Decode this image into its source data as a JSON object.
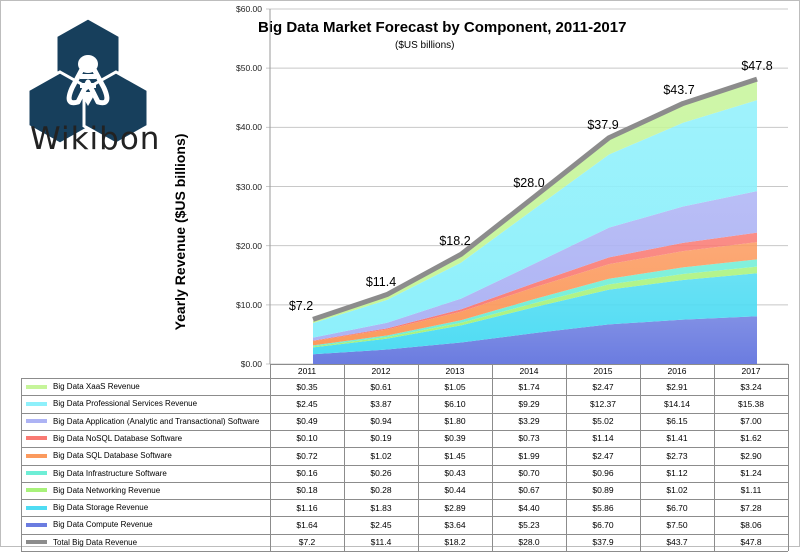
{
  "brand": {
    "name": "Wikibon",
    "logo_icon": "bee-hexagon-logo-icon"
  },
  "chart_data": {
    "type": "area",
    "stacked": true,
    "title": "Big Data Market Forecast by Component, 2011-2017",
    "subtitle": "($US billions)",
    "xlabel": "",
    "ylabel": "Yearly Revenue ($US billions)",
    "ylim": [
      0,
      60
    ],
    "yticks": [
      "$0.00",
      "$10.00",
      "$20.00",
      "$30.00",
      "$40.00",
      "$50.00",
      "$60.00"
    ],
    "ytick_values": [
      0,
      10,
      20,
      30,
      40,
      50,
      60
    ],
    "grid": true,
    "legend_placement": "bottom-table",
    "categories": [
      "2011",
      "2012",
      "2013",
      "2014",
      "2015",
      "2016",
      "2017"
    ],
    "series": [
      {
        "name": "Big Data XaaS Revenue",
        "color": "#c6f59a",
        "values": [
          0.35,
          0.61,
          1.05,
          1.74,
          2.47,
          2.91,
          3.24
        ],
        "labels": [
          "$0.35",
          "$0.61",
          "$1.05",
          "$1.74",
          "$2.47",
          "$2.91",
          "$3.24"
        ]
      },
      {
        "name": "Big Data Professional Services Revenue",
        "color": "#8ef0fb",
        "values": [
          2.45,
          3.87,
          6.1,
          9.29,
          12.37,
          14.14,
          15.38
        ],
        "labels": [
          "$2.45",
          "$3.87",
          "$6.10",
          "$9.29",
          "$12.37",
          "$14.14",
          "$15.38"
        ]
      },
      {
        "name": "Big Data Application (Analytic and Transactional) Software",
        "color": "#adb3f4",
        "values": [
          0.49,
          0.94,
          1.8,
          3.29,
          5.02,
          6.15,
          7.0
        ],
        "labels": [
          "$0.49",
          "$0.94",
          "$1.80",
          "$3.29",
          "$5.02",
          "$6.15",
          "$7.00"
        ]
      },
      {
        "name": "Big Data NoSQL Database Software",
        "color": "#f97a73",
        "values": [
          0.1,
          0.19,
          0.39,
          0.73,
          1.14,
          1.41,
          1.62
        ],
        "labels": [
          "$0.10",
          "$0.19",
          "$0.39",
          "$0.73",
          "$1.14",
          "$1.41",
          "$1.62"
        ]
      },
      {
        "name": "Big Data SQL Database Software",
        "color": "#fb9a5e",
        "values": [
          0.72,
          1.02,
          1.45,
          1.99,
          2.47,
          2.73,
          2.9
        ],
        "labels": [
          "$0.72",
          "$1.02",
          "$1.45",
          "$1.99",
          "$2.47",
          "$2.73",
          "$2.90"
        ]
      },
      {
        "name": "Big Data Infrastructure Software",
        "color": "#6eeed6",
        "values": [
          0.16,
          0.26,
          0.43,
          0.7,
          0.96,
          1.12,
          1.24
        ],
        "labels": [
          "$0.16",
          "$0.26",
          "$0.43",
          "$0.70",
          "$0.96",
          "$1.12",
          "$1.24"
        ]
      },
      {
        "name": "Big Data Networking Revenue",
        "color": "#a8f27a",
        "values": [
          0.18,
          0.28,
          0.44,
          0.67,
          0.89,
          1.02,
          1.11
        ],
        "labels": [
          "$0.18",
          "$0.28",
          "$0.44",
          "$0.67",
          "$0.89",
          "$1.02",
          "$1.11"
        ]
      },
      {
        "name": "Big Data Storage Revenue",
        "color": "#4fdcf3",
        "values": [
          1.16,
          1.83,
          2.89,
          4.4,
          5.86,
          6.7,
          7.28
        ],
        "labels": [
          "$1.16",
          "$1.83",
          "$2.89",
          "$4.40",
          "$5.86",
          "$6.70",
          "$7.28"
        ]
      },
      {
        "name": "Big Data Compute Revenue",
        "color": "#6b7ce0",
        "values": [
          1.64,
          2.45,
          3.64,
          5.23,
          6.7,
          7.5,
          8.06
        ],
        "labels": [
          "$1.64",
          "$2.45",
          "$3.64",
          "$5.23",
          "$6.70",
          "$7.50",
          "$8.06"
        ]
      },
      {
        "name": "Total Big Data Revenue",
        "color": "#8c8c8c",
        "type": "line",
        "values": [
          7.2,
          11.4,
          18.2,
          28.0,
          37.9,
          43.7,
          47.8
        ],
        "labels": [
          "$7.2",
          "$11.4",
          "$18.2",
          "$28.0",
          "$37.9",
          "$43.7",
          "$47.8"
        ]
      }
    ],
    "data_labels": [
      "$7.2",
      "$11.4",
      "$18.2",
      "$28.0",
      "$37.9",
      "$43.7",
      "$47.8"
    ]
  }
}
